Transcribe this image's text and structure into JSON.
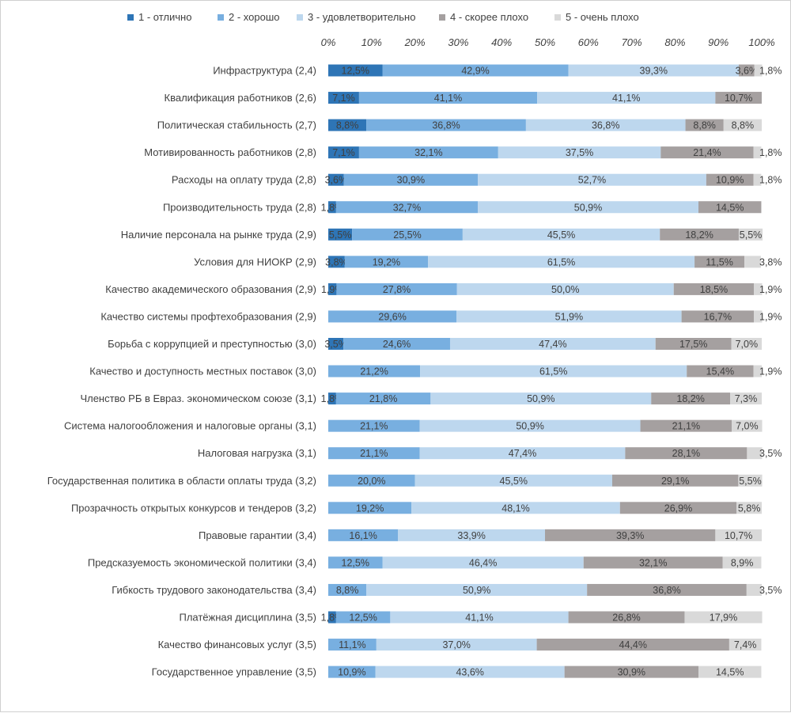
{
  "chart_data": {
    "type": "bar",
    "orientation": "horizontal",
    "stacked": "percent",
    "title": "",
    "xlabel": "",
    "ylabel": "",
    "xlim": [
      0,
      100
    ],
    "x_ticks": [
      "0%",
      "10%",
      "20%",
      "30%",
      "40%",
      "50%",
      "60%",
      "70%",
      "80%",
      "90%",
      "100%"
    ],
    "x_axis_position": "top",
    "grid": false,
    "legend_position": "top",
    "categories": [
      "Инфраструктура (2,4)",
      "Квалификация работников (2,6)",
      "Политическая стабильность (2,7)",
      "Мотивированность работников (2,8)",
      "Расходы на оплату труда (2,8)",
      "Производительность труда (2,8)",
      "Наличие персонала на рынке труда (2,9)",
      "Условия для НИОКР (2,9)",
      "Качество академического образования (2,9)",
      "Качество системы профтехобразования (2,9)",
      "Борьба с коррупцией и преступностью (3,0)",
      "Качество и доступность местных поставок (3,0)",
      "Членство РБ в Евраз. экономическом союзе (3,1)",
      "Система налогообложения и налоговые органы (3,1)",
      "Налоговая нагрузка (3,1)",
      "Государственная политика в области оплаты труда (3,2)",
      "Прозрачность открытых конкурсов и тендеров (3,2)",
      "Правовые гарантии (3,4)",
      "Предсказуемость экономической политики (3,4)",
      "Гибкость трудового законодательства (3,4)",
      "Платёжная дисциплина (3,5)",
      "Качество финансовых услуг (3,5)",
      "Государственное управление (3,5)"
    ],
    "series": [
      {
        "name": "1 - отлично",
        "color": "#2e75b6",
        "values": [
          12.5,
          7.1,
          8.8,
          7.1,
          3.6,
          1.8,
          5.5,
          3.8,
          1.9,
          0,
          3.5,
          0,
          1.8,
          0,
          0,
          0,
          0,
          0,
          0,
          0,
          1.8,
          0,
          0
        ],
        "labels": [
          "12,5%",
          "7,1%",
          "8,8%",
          "7,1%",
          "3,6%",
          "1,8%",
          "5,5%",
          "3,8%",
          "1,9%",
          "",
          "3,5%",
          "",
          "1,8%",
          "",
          "",
          "",
          "",
          "",
          "",
          "",
          "1,8%",
          "",
          ""
        ]
      },
      {
        "name": "2 - хорошо",
        "color": "#78afe0",
        "values": [
          42.9,
          41.1,
          36.8,
          32.1,
          30.9,
          32.7,
          25.5,
          19.2,
          27.8,
          29.6,
          24.6,
          21.2,
          21.8,
          21.1,
          21.1,
          20.0,
          19.2,
          16.1,
          12.5,
          8.8,
          12.5,
          11.1,
          10.9
        ],
        "labels": [
          "42,9%",
          "41,1%",
          "36,8%",
          "32,1%",
          "30,9%",
          "32,7%",
          "25,5%",
          "19,2%",
          "27,8%",
          "29,6%",
          "24,6%",
          "21,2%",
          "21,8%",
          "21,1%",
          "21,1%",
          "20,0%",
          "19,2%",
          "16,1%",
          "12,5%",
          "8,8%",
          "12,5%",
          "11,1%",
          "10,9%"
        ]
      },
      {
        "name": "3 - удовлетворительно",
        "color": "#bdd7ee",
        "values": [
          39.3,
          41.1,
          36.8,
          37.5,
          52.7,
          50.9,
          45.5,
          61.5,
          50.0,
          51.9,
          47.4,
          61.5,
          50.9,
          50.9,
          47.4,
          45.5,
          48.1,
          33.9,
          46.4,
          50.9,
          41.1,
          37.0,
          43.6
        ],
        "labels": [
          "39,3%",
          "41,1%",
          "36,8%",
          "37,5%",
          "52,7%",
          "50,9%",
          "45,5%",
          "61,5%",
          "50,0%",
          "51,9%",
          "47,4%",
          "61,5%",
          "50,9%",
          "50,9%",
          "47,4%",
          "45,5%",
          "48,1%",
          "33,9%",
          "46,4%",
          "50,9%",
          "41,1%",
          "37,0%",
          "43,6%"
        ]
      },
      {
        "name": "4 - скорее плохо",
        "color": "#a5a0a0",
        "values": [
          3.6,
          10.7,
          8.8,
          21.4,
          10.9,
          14.5,
          18.2,
          11.5,
          18.5,
          16.7,
          17.5,
          15.4,
          18.2,
          21.1,
          28.1,
          29.1,
          26.9,
          39.3,
          32.1,
          36.8,
          26.8,
          44.4,
          30.9
        ],
        "labels": [
          "3,6%",
          "10,7%",
          "8,8%",
          "21,4%",
          "10,9%",
          "14,5%",
          "18,2%",
          "11,5%",
          "18,5%",
          "16,7%",
          "17,5%",
          "15,4%",
          "18,2%",
          "21,1%",
          "28,1%",
          "29,1%",
          "26,9%",
          "39,3%",
          "32,1%",
          "36,8%",
          "26,8%",
          "44,4%",
          "30,9%"
        ]
      },
      {
        "name": "5 - очень плохо",
        "color": "#d9d9d9",
        "values": [
          1.8,
          0,
          8.8,
          1.8,
          1.8,
          0,
          5.5,
          3.8,
          1.9,
          1.9,
          7.0,
          1.9,
          7.3,
          7.0,
          3.5,
          5.5,
          5.8,
          10.7,
          8.9,
          3.5,
          17.9,
          7.4,
          14.5
        ],
        "labels": [
          "1,8%",
          "",
          "8,8%",
          "1,8%",
          "1,8%",
          "",
          "5,5%",
          "3,8%",
          "1,9%",
          "1,9%",
          "7,0%",
          "1,9%",
          "7,3%",
          "7,0%",
          "3,5%",
          "5,5%",
          "5,8%",
          "10,7%",
          "8,9%",
          "3,5%",
          "17,9%",
          "7,4%",
          "14,5%"
        ]
      }
    ]
  }
}
